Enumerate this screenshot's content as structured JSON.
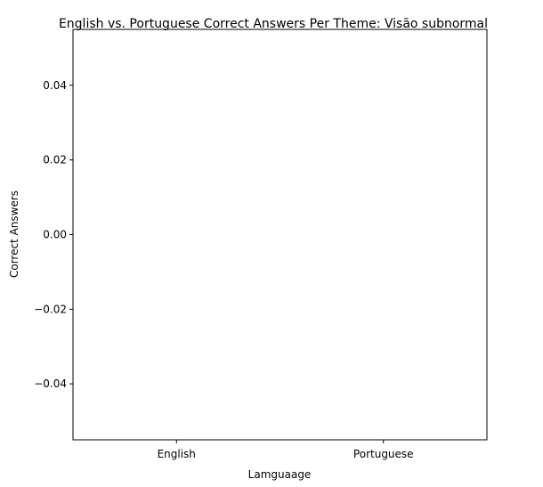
{
  "chart_data": {
    "type": "bar",
    "title": "English vs. Portuguese Correct Answers Per Theme: Visão subnormal",
    "xlabel": "Lamguaage",
    "ylabel": "Correct Answers",
    "categories": [
      "English",
      "Portuguese"
    ],
    "values": [
      0,
      0
    ],
    "ylim": [
      -0.055,
      0.055
    ],
    "yticks": [
      0.04,
      0.02,
      0.0,
      -0.02,
      -0.04
    ],
    "ytick_labels": [
      "0.04",
      "0.02",
      "0.00",
      "−0.02",
      "−0.04"
    ],
    "grid": false,
    "legend": "none",
    "colors": {
      "axis": "#000000",
      "background": "#ffffff"
    }
  }
}
